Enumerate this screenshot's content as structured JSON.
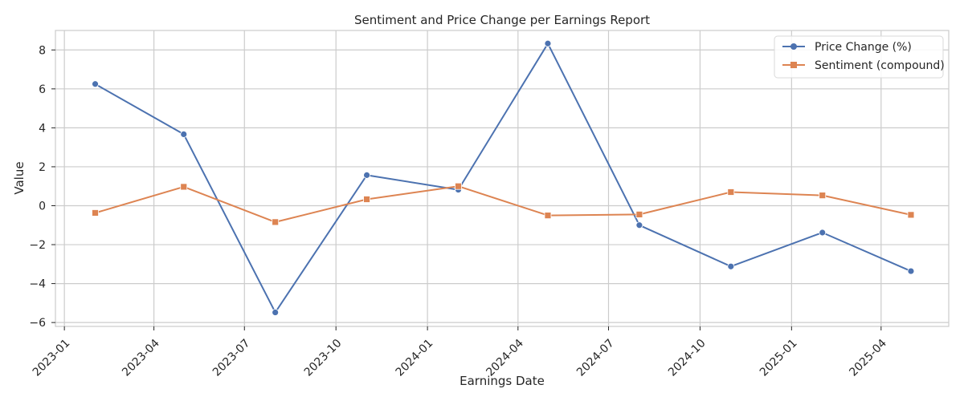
{
  "chart_data": {
    "type": "line",
    "title": "Sentiment and Price Change per Earnings Report",
    "xlabel": "Earnings Date",
    "ylabel": "Value",
    "x": [
      "2023-02-01",
      "2023-05-01",
      "2023-08-01",
      "2023-11-01",
      "2024-02-01",
      "2024-05-01",
      "2024-08-01",
      "2024-11-01",
      "2025-02-01",
      "2025-05-01"
    ],
    "x_ticks": [
      "2023-01",
      "2023-04",
      "2023-07",
      "2023-10",
      "2024-01",
      "2024-04",
      "2024-07",
      "2024-10",
      "2025-01",
      "2025-04"
    ],
    "xlim": [
      "2022-12-23",
      "2025-06-08"
    ],
    "y_ticks": [
      -6,
      -4,
      -2,
      0,
      2,
      4,
      6,
      8
    ],
    "y_tick_labels": [
      "−6",
      "−4",
      "−2",
      "0",
      "2",
      "4",
      "6",
      "8"
    ],
    "ylim": [
      -6.2,
      9.0
    ],
    "grid": true,
    "legend_position": "top-right",
    "series": [
      {
        "name": "Price Change (%)",
        "color": "#4c72b0",
        "marker": "circle",
        "values": [
          6.25,
          3.67,
          -5.48,
          1.57,
          0.82,
          8.33,
          -1.0,
          -3.12,
          -1.38,
          -3.36
        ]
      },
      {
        "name": "Sentiment (compound)",
        "color": "#dd8452",
        "marker": "square",
        "values": [
          -0.37,
          0.97,
          -0.84,
          0.33,
          1.0,
          -0.5,
          -0.45,
          0.7,
          0.53,
          -0.47
        ]
      }
    ]
  }
}
